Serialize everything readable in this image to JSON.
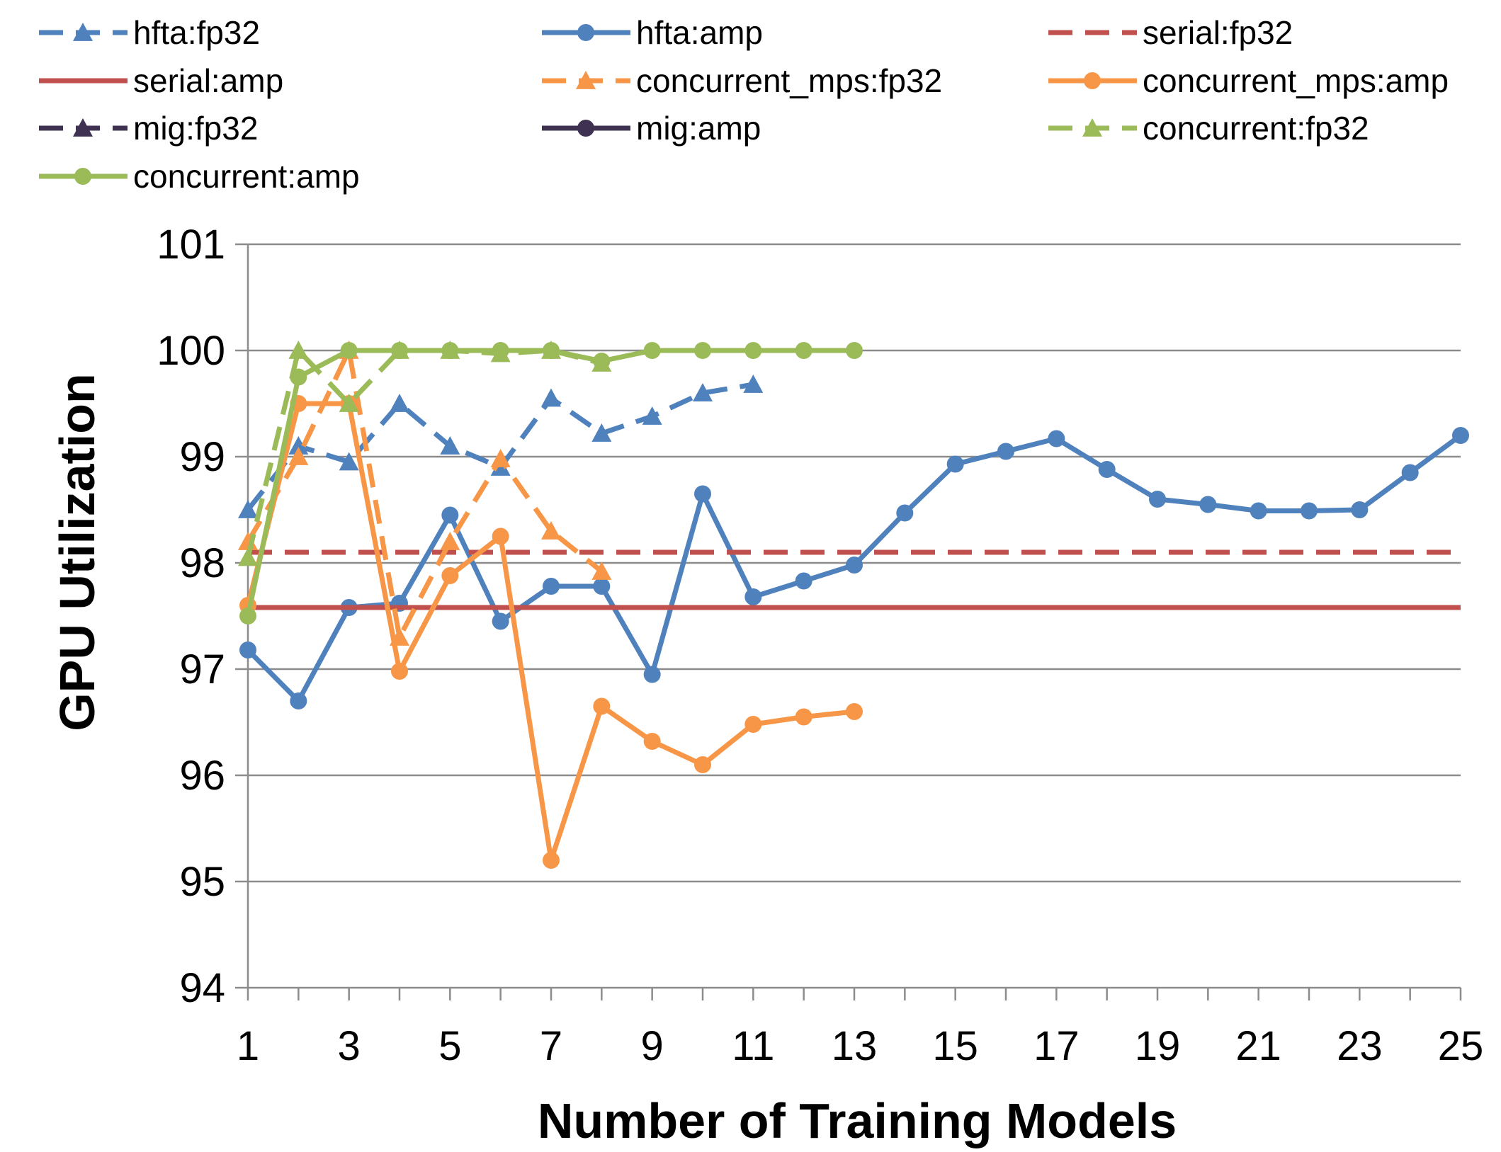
{
  "chart_data": {
    "type": "line",
    "title": "",
    "xlabel": "Number of Training Models",
    "ylabel": "GPU Utilization",
    "xlim": [
      1,
      25
    ],
    "ylim": [
      94,
      101
    ],
    "x_tick_labels": [
      "1",
      "3",
      "5",
      "7",
      "9",
      "11",
      "13",
      "15",
      "17",
      "19",
      "21",
      "23",
      "25"
    ],
    "y_tick_labels": [
      "94",
      "95",
      "96",
      "97",
      "98",
      "99",
      "100",
      "101"
    ],
    "grid": "horizontal",
    "legend_position": "top",
    "series": [
      {
        "name": "hfta:fp32",
        "color": "#4F81BD",
        "dashed": true,
        "marker": "triangle",
        "x": [
          1,
          2,
          3,
          4,
          5,
          6,
          7,
          8,
          9,
          10,
          11
        ],
        "values": [
          98.5,
          99.1,
          98.95,
          99.5,
          99.1,
          98.9,
          99.55,
          99.22,
          99.38,
          99.6,
          99.68
        ]
      },
      {
        "name": "hfta:amp",
        "color": "#4F81BD",
        "dashed": false,
        "marker": "circle",
        "x": [
          1,
          2,
          3,
          4,
          5,
          6,
          7,
          8,
          9,
          10,
          11,
          12,
          13,
          14,
          15,
          16,
          17,
          18,
          19,
          20,
          21,
          22,
          23,
          24,
          25
        ],
        "values": [
          97.18,
          96.7,
          97.58,
          97.62,
          98.45,
          97.45,
          97.78,
          97.78,
          96.95,
          98.65,
          97.68,
          97.83,
          97.98,
          98.47,
          98.93,
          99.05,
          99.17,
          98.88,
          98.6,
          98.55,
          98.49,
          98.49,
          98.5,
          98.85,
          99.2
        ]
      },
      {
        "name": "serial:fp32",
        "color": "#C0504D",
        "dashed": true,
        "marker": "none",
        "x": [
          1,
          25
        ],
        "values": [
          98.1,
          98.1
        ]
      },
      {
        "name": "serial:amp",
        "color": "#C0504D",
        "dashed": false,
        "marker": "none",
        "x": [
          1,
          25
        ],
        "values": [
          97.58,
          97.58
        ]
      },
      {
        "name": "concurrent_mps:fp32",
        "color": "#F79646",
        "dashed": true,
        "marker": "triangle",
        "x": [
          1,
          2,
          3,
          4,
          5,
          6,
          7,
          8
        ],
        "values": [
          98.2,
          99.0,
          100.0,
          97.3,
          98.2,
          98.98,
          98.3,
          97.92
        ]
      },
      {
        "name": "concurrent_mps:amp",
        "color": "#F79646",
        "dashed": false,
        "marker": "circle",
        "x": [
          1,
          2,
          3,
          4,
          5,
          6,
          7,
          8,
          9,
          10,
          11,
          12,
          13
        ],
        "values": [
          97.6,
          99.5,
          99.5,
          96.98,
          97.88,
          98.25,
          95.2,
          96.65,
          96.32,
          96.1,
          96.48,
          96.55,
          96.6
        ]
      },
      {
        "name": "mig:fp32",
        "color": "#3F3151",
        "dashed": true,
        "marker": "triangle",
        "x": [],
        "values": []
      },
      {
        "name": "mig:amp",
        "color": "#3F3151",
        "dashed": false,
        "marker": "circle",
        "x": [],
        "values": []
      },
      {
        "name": "concurrent:fp32",
        "color": "#9BBB59",
        "dashed": true,
        "marker": "triangle",
        "x": [
          1,
          2,
          3,
          4,
          5,
          6,
          7,
          8
        ],
        "values": [
          98.05,
          100.0,
          99.5,
          100.0,
          100.0,
          99.97,
          100.0,
          99.88
        ]
      },
      {
        "name": "concurrent:amp",
        "color": "#9BBB59",
        "dashed": false,
        "marker": "circle",
        "x": [
          1,
          2,
          3,
          4,
          5,
          6,
          7,
          8,
          9,
          10,
          11,
          12,
          13
        ],
        "values": [
          97.5,
          99.75,
          100.0,
          100.0,
          100.0,
          100.0,
          100.0,
          99.9,
          100.0,
          100.0,
          100.0,
          100.0,
          100.0
        ]
      }
    ]
  }
}
